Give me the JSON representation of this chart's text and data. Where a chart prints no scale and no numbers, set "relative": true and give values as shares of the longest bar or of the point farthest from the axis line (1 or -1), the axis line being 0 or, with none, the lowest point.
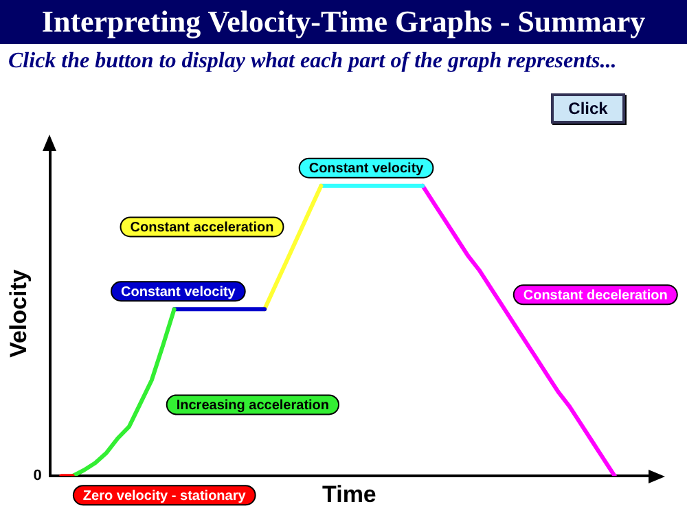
{
  "chart_data": {
    "type": "line",
    "title": "Interpreting Velocity-Time Graphs - Summary",
    "subtitle": "Click the button to display what each part of the graph represents...",
    "xlabel": "Time",
    "ylabel": "Velocity",
    "relative": true,
    "marker": "none",
    "line_style": "solid",
    "annotations": [
      "0",
      "Click"
    ],
    "categories": [
      null,
      null,
      null,
      null,
      null,
      null,
      null,
      null,
      null,
      null,
      null,
      null,
      null,
      null,
      null,
      null,
      null,
      null,
      null,
      null,
      null,
      null,
      null,
      null,
      null,
      null,
      null,
      null,
      null,
      null,
      null,
      null,
      null,
      null,
      null,
      null,
      null,
      null,
      null,
      null,
      null,
      null,
      null,
      null,
      null,
      null,
      null,
      null,
      null,
      null
    ],
    "series": [
      {
        "name": "Zero velocity - stationary",
        "color": "#ff0000",
        "values": [
          0,
          0,
          null,
          null,
          null,
          null,
          null,
          null,
          null,
          null,
          null,
          null,
          null,
          null,
          null,
          null,
          null,
          null,
          null,
          null,
          null,
          null,
          null,
          null,
          null,
          null,
          null,
          null,
          null,
          null,
          null,
          null,
          null,
          null,
          null,
          null,
          null,
          null,
          null,
          null,
          null,
          null,
          null,
          null,
          null,
          null,
          null,
          null,
          null,
          null
        ]
      },
      {
        "name": "Increasing acceleration",
        "color": "#33ee33",
        "values": [
          null,
          0,
          0.02,
          0.045,
          0.08,
          0.13,
          0.17,
          0.25,
          0.33,
          0.45,
          0.575,
          null,
          null,
          null,
          null,
          null,
          null,
          null,
          null,
          null,
          null,
          null,
          null,
          null,
          null,
          null,
          null,
          null,
          null,
          null,
          null,
          null,
          null,
          null,
          null,
          null,
          null,
          null,
          null,
          null,
          null,
          null,
          null,
          null,
          null,
          null,
          null,
          null,
          null,
          null
        ]
      },
      {
        "name": "Constant velocity",
        "color": "#0000cc",
        "values": [
          null,
          null,
          null,
          null,
          null,
          null,
          null,
          null,
          null,
          null,
          0.575,
          0.575,
          0.575,
          0.575,
          0.575,
          0.575,
          0.575,
          0.575,
          0.575,
          null,
          null,
          null,
          null,
          null,
          null,
          null,
          null,
          null,
          null,
          null,
          null,
          null,
          null,
          null,
          null,
          null,
          null,
          null,
          null,
          null,
          null,
          null,
          null,
          null,
          null,
          null,
          null,
          null,
          null,
          null
        ]
      },
      {
        "name": "Constant acceleration",
        "color": "#ffff33",
        "values": [
          null,
          null,
          null,
          null,
          null,
          null,
          null,
          null,
          null,
          null,
          null,
          null,
          null,
          null,
          null,
          null,
          null,
          null,
          0.575,
          0.66,
          0.745,
          0.83,
          0.915,
          1,
          null,
          null,
          null,
          null,
          null,
          null,
          null,
          null,
          null,
          null,
          null,
          null,
          null,
          null,
          null,
          null,
          null,
          null,
          null,
          null,
          null,
          null,
          null,
          null,
          null,
          null
        ]
      },
      {
        "name": "Constant velocity",
        "color": "#33ffff",
        "values": [
          null,
          null,
          null,
          null,
          null,
          null,
          null,
          null,
          null,
          null,
          null,
          null,
          null,
          null,
          null,
          null,
          null,
          null,
          null,
          null,
          null,
          null,
          null,
          1,
          1,
          1,
          1,
          1,
          1,
          1,
          1,
          1,
          1,
          null,
          null,
          null,
          null,
          null,
          null,
          null,
          null,
          null,
          null,
          null,
          null,
          null,
          null,
          null,
          null,
          null
        ]
      },
      {
        "name": "Constant deceleration",
        "color": "#ff00ff",
        "values": [
          null,
          null,
          null,
          null,
          null,
          null,
          null,
          null,
          null,
          null,
          null,
          null,
          null,
          null,
          null,
          null,
          null,
          null,
          null,
          null,
          null,
          null,
          null,
          null,
          null,
          null,
          null,
          null,
          null,
          null,
          null,
          null,
          1,
          0.94,
          0.88,
          0.82,
          0.76,
          0.71,
          0.65,
          0.59,
          0.53,
          0.47,
          0.41,
          0.35,
          0.29,
          0.24,
          0.18,
          0.12,
          0.06,
          0
        ]
      }
    ]
  }
}
